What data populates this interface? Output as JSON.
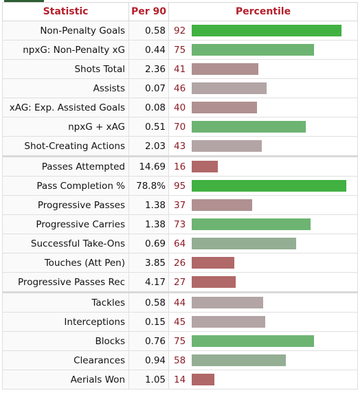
{
  "header": {
    "statistic": "Statistic",
    "per90": "Per 90",
    "percentile": "Percentile"
  },
  "colors": {
    "high": "#41b142",
    "mid_high": "#6db472",
    "mid": "#94ae94",
    "neutral": "#b3a5a5",
    "low_mid": "#b09090",
    "low": "#b06868"
  },
  "groups": [
    {
      "rows": [
        {
          "statistic": "Non-Penalty Goals",
          "per90": "0.58",
          "percentile": 92
        },
        {
          "statistic": "npxG: Non-Penalty xG",
          "per90": "0.44",
          "percentile": 75
        },
        {
          "statistic": "Shots Total",
          "per90": "2.36",
          "percentile": 41
        },
        {
          "statistic": "Assists",
          "per90": "0.07",
          "percentile": 46
        },
        {
          "statistic": "xAG: Exp. Assisted Goals",
          "per90": "0.08",
          "percentile": 40
        },
        {
          "statistic": "npxG + xAG",
          "per90": "0.51",
          "percentile": 70
        },
        {
          "statistic": "Shot-Creating Actions",
          "per90": "2.03",
          "percentile": 43
        }
      ]
    },
    {
      "rows": [
        {
          "statistic": "Passes Attempted",
          "per90": "14.69",
          "percentile": 16
        },
        {
          "statistic": "Pass Completion %",
          "per90": "78.8%",
          "percentile": 95
        },
        {
          "statistic": "Progressive Passes",
          "per90": "1.38",
          "percentile": 37
        },
        {
          "statistic": "Progressive Carries",
          "per90": "1.38",
          "percentile": 73
        },
        {
          "statistic": "Successful Take-Ons",
          "per90": "0.69",
          "percentile": 64
        },
        {
          "statistic": "Touches (Att Pen)",
          "per90": "3.85",
          "percentile": 26
        },
        {
          "statistic": "Progressive Passes Rec",
          "per90": "4.17",
          "percentile": 27
        }
      ]
    },
    {
      "rows": [
        {
          "statistic": "Tackles",
          "per90": "0.58",
          "percentile": 44
        },
        {
          "statistic": "Interceptions",
          "per90": "0.15",
          "percentile": 45
        },
        {
          "statistic": "Blocks",
          "per90": "0.76",
          "percentile": 75
        },
        {
          "statistic": "Clearances",
          "per90": "0.94",
          "percentile": 58
        },
        {
          "statistic": "Aerials Won",
          "per90": "1.05",
          "percentile": 14
        }
      ]
    }
  ]
}
